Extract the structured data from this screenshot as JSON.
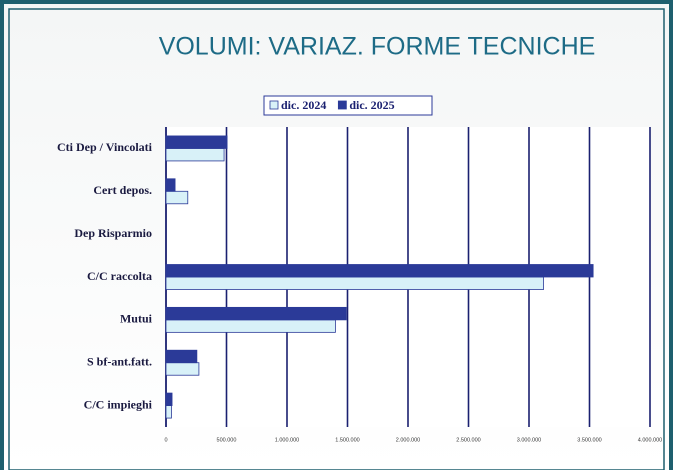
{
  "chart_data": {
    "type": "hbar",
    "title": "VOLUMI: VARIAZ. FORME TECNICHE",
    "categories": [
      "Cti Dep / Vincolati",
      "Cert depos.",
      "Dep Risparmio",
      "C/C raccolta",
      "Mutui",
      "S bf-ant.fatt.",
      "C/C impieghi"
    ],
    "series": [
      {
        "name": "dic. 2024",
        "color": "#d8f1f8",
        "values": [
          480000,
          180000,
          0,
          3120000,
          1400000,
          272000,
          45000
        ]
      },
      {
        "name": "dic. 2025",
        "color": "#2b3a98",
        "values": [
          505000,
          75000,
          0,
          3530000,
          1490000,
          255000,
          50000
        ]
      }
    ],
    "xlim": [
      0,
      4000000
    ],
    "xticks": [
      0,
      {
        "value": 500000,
        "label": "500.000"
      },
      {
        "value": 1000000,
        "label": "1.000.000"
      },
      {
        "value": 1500000,
        "label": "1.500.000"
      },
      {
        "value": 2000000,
        "label": "2.000.000"
      },
      {
        "value": 2500000,
        "label": "2.500.000"
      },
      {
        "value": 3000000,
        "label": "3.000.000"
      },
      {
        "value": 3500000,
        "label": "3.500.000"
      },
      {
        "value": 4000000,
        "label": "4.000.000"
      }
    ],
    "grid": true,
    "legend": "top"
  }
}
